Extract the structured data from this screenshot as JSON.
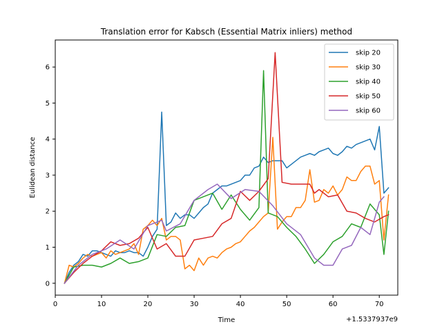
{
  "chart_data": {
    "type": "line",
    "title": "Translation error for Kabsch (Essential Matrix inliers) method",
    "xlabel": "Time",
    "ylabel": "Eulidean distance",
    "x_offset_text": "+1.5337937e9",
    "xlim": [
      0,
      74
    ],
    "ylim": [
      -0.33,
      6.75
    ],
    "xticks": [
      0,
      10,
      20,
      30,
      40,
      50,
      60,
      70
    ],
    "yticks": [
      0,
      1,
      2,
      3,
      4,
      5,
      6
    ],
    "grid": false,
    "legend_position": "top-right",
    "series": [
      {
        "name": "skip 20",
        "color": "#1f77b4",
        "x": [
          2,
          3,
          4,
          5,
          6,
          7,
          8,
          9,
          10,
          11,
          12,
          13,
          14,
          15,
          16,
          17,
          18,
          19,
          20,
          21,
          22,
          23,
          24,
          25,
          26,
          27,
          28,
          29,
          30,
          31,
          32,
          33,
          34,
          35,
          36,
          37,
          38,
          39,
          40,
          41,
          42,
          43,
          44,
          45,
          46,
          47,
          48,
          49,
          50,
          51,
          52,
          53,
          54,
          55,
          56,
          57,
          58,
          59,
          60,
          61,
          62,
          63,
          64,
          65,
          66,
          67,
          68,
          69,
          70,
          71,
          72
        ],
        "y": [
          0.0,
          0.3,
          0.5,
          0.6,
          0.8,
          0.75,
          0.9,
          0.9,
          0.85,
          0.8,
          0.75,
          0.9,
          0.85,
          0.85,
          0.9,
          0.85,
          0.85,
          0.75,
          1.0,
          1.3,
          1.5,
          4.75,
          1.6,
          1.7,
          1.95,
          1.8,
          1.9,
          1.9,
          1.8,
          1.95,
          2.1,
          2.2,
          2.5,
          2.6,
          2.7,
          2.7,
          2.75,
          2.8,
          2.85,
          3.0,
          3.0,
          3.2,
          3.25,
          3.5,
          3.35,
          3.4,
          3.4,
          3.4,
          3.2,
          3.3,
          3.4,
          3.5,
          3.55,
          3.6,
          3.55,
          3.65,
          3.7,
          3.75,
          3.6,
          3.55,
          3.65,
          3.8,
          3.75,
          3.85,
          3.9,
          3.95,
          4.0,
          3.7,
          4.35,
          2.5,
          2.65
        ]
      },
      {
        "name": "skip 30",
        "color": "#ff7f0e",
        "x": [
          2,
          3,
          4,
          5,
          6,
          7,
          8,
          9,
          10,
          11,
          12,
          13,
          14,
          15,
          16,
          17,
          18,
          19,
          20,
          21,
          22,
          23,
          24,
          25,
          26,
          27,
          28,
          29,
          30,
          31,
          32,
          33,
          34,
          35,
          36,
          37,
          38,
          39,
          40,
          41,
          42,
          43,
          44,
          45,
          46,
          47,
          48,
          49,
          50,
          51,
          52,
          53,
          54,
          55,
          56,
          57,
          58,
          59,
          60,
          61,
          62,
          63,
          64,
          65,
          66,
          67,
          68,
          69,
          70,
          71,
          72
        ],
        "y": [
          0.0,
          0.5,
          0.45,
          0.55,
          0.7,
          0.8,
          0.75,
          0.8,
          0.85,
          0.7,
          0.9,
          0.8,
          0.85,
          0.9,
          0.95,
          1.1,
          0.8,
          1.5,
          1.6,
          1.75,
          1.6,
          1.8,
          1.2,
          1.3,
          1.3,
          1.2,
          0.4,
          0.5,
          0.35,
          0.7,
          0.5,
          0.7,
          0.75,
          0.7,
          0.85,
          0.95,
          1.0,
          1.1,
          1.15,
          1.3,
          1.45,
          1.55,
          1.7,
          1.85,
          1.95,
          4.05,
          1.5,
          1.7,
          1.85,
          1.85,
          2.1,
          2.1,
          2.3,
          3.15,
          2.25,
          2.3,
          2.6,
          2.5,
          2.7,
          2.45,
          2.6,
          2.95,
          2.85,
          2.85,
          3.1,
          3.25,
          3.25,
          2.75,
          2.85,
          1.2,
          2.45
        ]
      },
      {
        "name": "skip 40",
        "color": "#2ca02c",
        "x": [
          2,
          4,
          6,
          8,
          10,
          12,
          14,
          16,
          18,
          20,
          22,
          24,
          26,
          28,
          30,
          32,
          34,
          36,
          38,
          40,
          42,
          44,
          45,
          46,
          48,
          50,
          52,
          54,
          56,
          58,
          60,
          62,
          64,
          66,
          68,
          70,
          71,
          72
        ],
        "y": [
          0.0,
          0.45,
          0.5,
          0.5,
          0.45,
          0.55,
          0.7,
          0.55,
          0.6,
          0.7,
          1.35,
          1.3,
          1.55,
          1.6,
          2.3,
          2.4,
          2.5,
          2.05,
          2.45,
          2.05,
          1.75,
          2.1,
          5.9,
          1.95,
          1.85,
          1.55,
          1.3,
          0.95,
          0.55,
          0.8,
          1.15,
          1.3,
          1.65,
          1.55,
          2.2,
          1.9,
          0.8,
          2.0
        ]
      },
      {
        "name": "skip 50",
        "color": "#d62728",
        "x": [
          2,
          4,
          6,
          8,
          10,
          12,
          14,
          16,
          18,
          20,
          22,
          24,
          26,
          28,
          30,
          32,
          34,
          36,
          38,
          40,
          42,
          44,
          46,
          47.5,
          49,
          51,
          53,
          55,
          56,
          57,
          59,
          61,
          63,
          65,
          67,
          69,
          71,
          72
        ],
        "y": [
          0.0,
          0.3,
          0.55,
          0.75,
          0.9,
          1.15,
          1.05,
          1.1,
          1.25,
          1.55,
          0.95,
          1.1,
          0.75,
          0.75,
          1.2,
          1.25,
          1.3,
          1.65,
          1.8,
          2.55,
          2.3,
          2.55,
          2.9,
          6.4,
          2.8,
          2.75,
          2.75,
          2.75,
          2.5,
          2.6,
          2.4,
          2.45,
          2.0,
          1.95,
          1.8,
          1.7,
          1.85,
          1.9
        ]
      },
      {
        "name": "skip 60",
        "color": "#9467bd",
        "x": [
          2,
          5,
          8,
          11,
          14,
          17,
          20,
          23,
          24,
          27,
          30,
          33,
          35,
          38,
          41,
          44,
          47,
          50,
          53,
          56,
          58,
          60,
          62,
          64,
          66,
          68,
          70,
          71
        ],
        "y": [
          0.0,
          0.5,
          0.8,
          0.95,
          1.2,
          0.95,
          1.6,
          1.75,
          1.45,
          1.65,
          2.3,
          2.6,
          2.75,
          2.35,
          2.6,
          2.55,
          2.15,
          1.65,
          1.35,
          0.7,
          0.5,
          0.5,
          0.95,
          1.05,
          1.55,
          1.35,
          2.25,
          2.4
        ]
      }
    ]
  }
}
